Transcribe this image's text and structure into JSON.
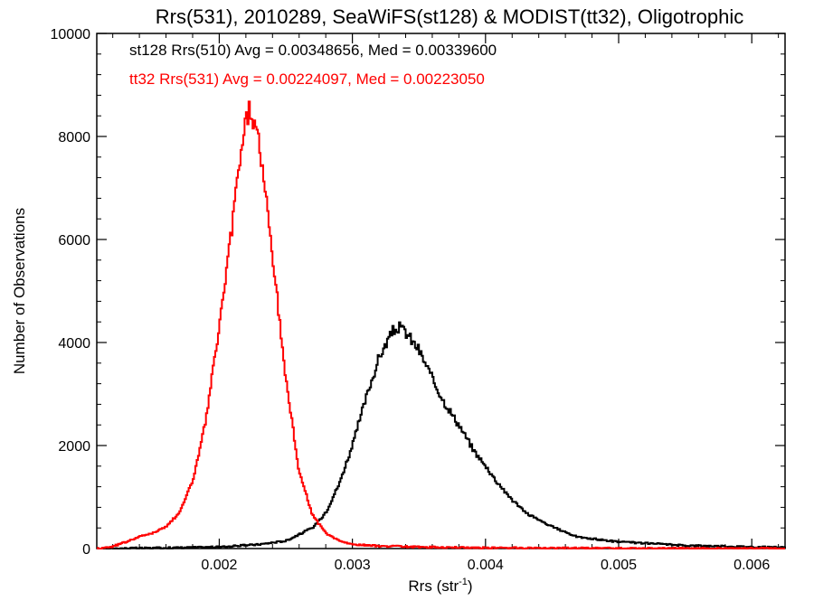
{
  "chart_data": {
    "type": "line",
    "style": "histogram-steps",
    "title": "Rrs(531), 2010289, SeaWiFS(st128) & MODIST(tt32), Oligotrophic",
    "xlabel": {
      "base": "Rrs (str",
      "sup": "-1",
      "end": ")"
    },
    "ylabel": "Number of Observations",
    "xlim": [
      0.00108,
      0.00625
    ],
    "ylim": [
      0,
      10000
    ],
    "x_ticks": [
      0.002,
      0.003,
      0.004,
      0.005,
      0.006
    ],
    "x_tick_labels": [
      "0.002",
      "0.003",
      "0.004",
      "0.005",
      "0.006"
    ],
    "y_ticks": [
      0,
      2000,
      4000,
      6000,
      8000,
      10000
    ],
    "y_tick_labels": [
      "0",
      "2000",
      "4000",
      "6000",
      "8000",
      "10000"
    ],
    "legend_position": "top-left",
    "series": [
      {
        "name": "st128",
        "legend": "st128 Rrs(510) Avg = 0.00348656, Med = 0.00339600",
        "color": "#000000",
        "x": [
          0.0011,
          0.0015,
          0.002,
          0.0023,
          0.0025,
          0.0027,
          0.0028,
          0.0029,
          0.003,
          0.0031,
          0.0032,
          0.0033,
          0.00335,
          0.0034,
          0.0035,
          0.0036,
          0.0037,
          0.0038,
          0.0039,
          0.004,
          0.0041,
          0.0042,
          0.0043,
          0.0045,
          0.0047,
          0.005,
          0.0055,
          0.00625
        ],
        "y": [
          0,
          10,
          30,
          80,
          150,
          400,
          700,
          1250,
          2000,
          2900,
          3700,
          4200,
          4300,
          4200,
          3850,
          3300,
          2800,
          2400,
          1950,
          1600,
          1250,
          950,
          700,
          420,
          220,
          130,
          60,
          20
        ]
      },
      {
        "name": "tt32",
        "legend": "tt32 Rrs(531) Avg = 0.00224097, Med = 0.00223050",
        "color": "#ff0000",
        "x": [
          0.0011,
          0.0012,
          0.0013,
          0.0014,
          0.0015,
          0.0016,
          0.0017,
          0.0018,
          0.0019,
          0.002,
          0.0021,
          0.00215,
          0.0022,
          0.00223,
          0.0023,
          0.0024,
          0.0025,
          0.0026,
          0.0027,
          0.0028,
          0.0029,
          0.003,
          0.0032,
          0.0035,
          0.004,
          0.005,
          0.00625
        ],
        "y": [
          0,
          40,
          130,
          230,
          300,
          420,
          700,
          1300,
          2500,
          4300,
          6300,
          7500,
          8300,
          8550,
          7900,
          5700,
          3300,
          1500,
          650,
          300,
          150,
          80,
          50,
          30,
          15,
          5,
          0
        ]
      }
    ]
  }
}
